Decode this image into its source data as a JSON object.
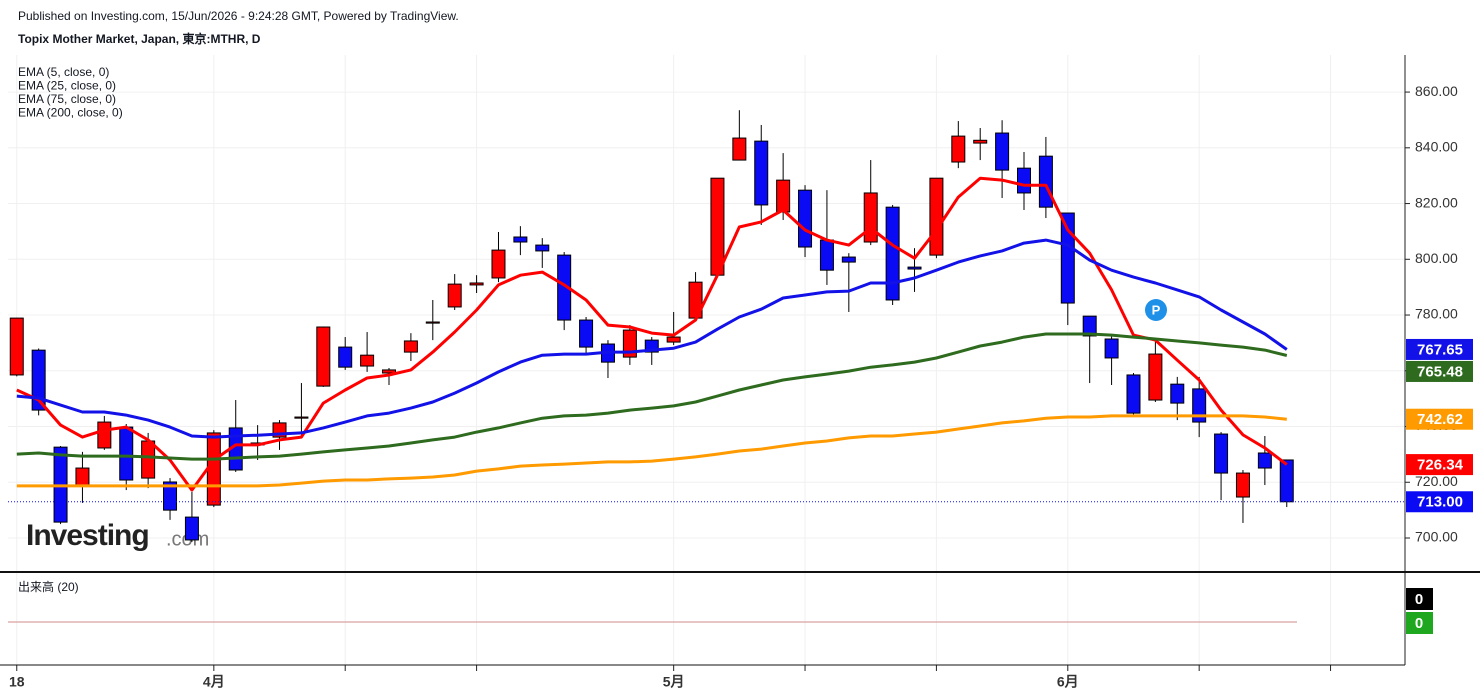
{
  "chart_data": {
    "type": "candlestick",
    "subtitle": "Published on Investing.com, 15/Jun/2026 - 9:24:28 GMT, Powered by TradingView.",
    "title": "Topix Mother Market, Japan, 東京:MTHR, D",
    "watermark": [
      "Investing",
      ".com"
    ],
    "badge": "P",
    "categories": [
      "18",
      null,
      null,
      null,
      null,
      null,
      null,
      null,
      null,
      "4月",
      null,
      null,
      null,
      null,
      null,
      null,
      null,
      null,
      null,
      null,
      null,
      null,
      null,
      null,
      null,
      null,
      null,
      null,
      null,
      null,
      "5月",
      null,
      null,
      null,
      null,
      null,
      null,
      null,
      null,
      null,
      null,
      null,
      null,
      null,
      null,
      null,
      null,
      null,
      "6月",
      null,
      null,
      null,
      null,
      null,
      null,
      null,
      null,
      null,
      null
    ],
    "xlim": [
      -0.4,
      63.4
    ],
    "xticks": [
      {
        "value": 0,
        "label": "18"
      },
      {
        "value": 9,
        "label": "4月"
      },
      {
        "value": 15,
        "label": null
      },
      {
        "value": 21,
        "label": null
      },
      {
        "value": 30,
        "label": "5月"
      },
      {
        "value": 36,
        "label": null
      },
      {
        "value": 42,
        "label": null
      },
      {
        "value": 48,
        "label": "6月"
      },
      {
        "value": 54,
        "label": null
      },
      {
        "value": 60,
        "label": null
      }
    ],
    "ylim": [
      687.8,
      873.3
    ],
    "yticks": [
      {
        "value": 700,
        "label": "700.00"
      },
      {
        "value": 720,
        "label": "720.00"
      },
      {
        "value": 740,
        "label": "740.00"
      },
      {
        "value": 760,
        "label": "760.00"
      },
      {
        "value": 780,
        "label": "780.00"
      },
      {
        "value": 800,
        "label": "800.00"
      },
      {
        "value": 820,
        "label": "820.00"
      },
      {
        "value": 840,
        "label": "840.00"
      },
      {
        "value": 860,
        "label": "860.00"
      }
    ],
    "grid": true,
    "up_color": "#ff0000",
    "down_color": "#0a0af5",
    "open": [
      758.5,
      767.4,
      732.6,
      718.6,
      732.3,
      739.8,
      721.5,
      720.1,
      707.5,
      711.8,
      739.5,
      734.1,
      736.2,
      743.0,
      754.5,
      768.5,
      761.7,
      759.2,
      766.7,
      777.1,
      782.9,
      790.8,
      793.3,
      808.0,
      805.1,
      801.5,
      778.2,
      769.6,
      764.9,
      771.0,
      770.3,
      778.9,
      794.3,
      835.6,
      842.4,
      817.0,
      824.8,
      806.9,
      800.8,
      806.2,
      818.7,
      797.2,
      801.5,
      834.9,
      841.7,
      845.3,
      832.7,
      837.0,
      816.6,
      779.6,
      771.4,
      758.5,
      749.5,
      755.2,
      753.5,
      737.3,
      714.7,
      730.5,
      728.0
    ],
    "high": [
      779.0,
      768.0,
      733.0,
      730.9,
      743.8,
      740.9,
      737.7,
      721.5,
      716.5,
      738.7,
      749.5,
      740.5,
      742.3,
      755.6,
      775.9,
      772.1,
      773.9,
      761.0,
      773.5,
      785.4,
      794.7,
      794.3,
      809.8,
      811.9,
      807.6,
      802.6,
      779.3,
      771.0,
      776.4,
      772.1,
      781.1,
      795.4,
      829.1,
      853.5,
      848.2,
      838.1,
      826.6,
      824.8,
      802.2,
      835.6,
      819.5,
      804.0,
      829.1,
      849.6,
      847.1,
      849.9,
      838.5,
      843.9,
      816.6,
      779.6,
      772.5,
      759.2,
      771.0,
      757.8,
      757.8,
      738.0,
      724.4,
      736.6,
      728.0
    ],
    "low": [
      758.0,
      744.0,
      705.0,
      712.6,
      731.6,
      717.2,
      717.9,
      706.5,
      698.6,
      711.1,
      723.7,
      728.0,
      731.6,
      737.0,
      754.2,
      760.3,
      759.6,
      754.9,
      763.5,
      771.0,
      781.8,
      787.9,
      791.8,
      801.5,
      796.9,
      774.6,
      765.6,
      757.4,
      762.1,
      762.1,
      769.2,
      778.2,
      794.3,
      835.6,
      812.3,
      814.1,
      800.8,
      790.8,
      781.1,
      805.1,
      783.6,
      788.3,
      800.4,
      832.7,
      835.6,
      822.0,
      817.7,
      814.8,
      776.4,
      755.6,
      754.9,
      744.1,
      748.8,
      742.3,
      736.2,
      713.6,
      705.4,
      719.0,
      711.1
    ],
    "close": [
      778.9,
      745.9,
      705.7,
      725.1,
      741.6,
      720.8,
      734.8,
      710.0,
      699.3,
      737.7,
      724.4,
      733.4,
      741.3,
      743.4,
      775.7,
      761.3,
      765.6,
      760.3,
      770.7,
      777.5,
      791.1,
      791.5,
      803.3,
      806.2,
      803.0,
      778.2,
      768.5,
      763.1,
      774.6,
      766.7,
      772.1,
      791.8,
      829.1,
      843.5,
      819.5,
      828.4,
      804.4,
      796.1,
      799.0,
      823.8,
      785.4,
      796.5,
      829.1,
      844.2,
      842.7,
      832.0,
      823.8,
      818.7,
      784.3,
      772.5,
      764.6,
      744.8,
      766.0,
      748.4,
      741.6,
      723.3,
      723.3,
      725.1,
      713
    ],
    "close_label": "713.00",
    "series": [
      {
        "name": "EMA (5, close, 0)",
        "color": "#ff0000",
        "last_label": "726.34",
        "values": [
          753.1,
          749.5,
          740.5,
          736.2,
          738.7,
          739.8,
          735.2,
          728.0,
          717.2,
          728.0,
          733.4,
          733.4,
          735.2,
          736.2,
          748.4,
          753.1,
          757.4,
          758.5,
          760.3,
          766.7,
          773.9,
          781.8,
          790.8,
          794.3,
          795.4,
          790.8,
          785.4,
          776.4,
          775.7,
          773.5,
          772.8,
          778.2,
          794.3,
          811.6,
          813.4,
          817.7,
          810.5,
          806.9,
          805.1,
          811.2,
          805.1,
          800.4,
          810.5,
          822.3,
          829.1,
          828.4,
          826.6,
          826.6,
          810.5,
          802.2,
          789.0,
          772.8,
          771.0,
          763.8,
          756.7,
          745.9,
          737.0,
          732.3,
          726.34
        ]
      },
      {
        "name": "EMA (25, close, 0)",
        "color": "#1212e8",
        "last_label": "767.65",
        "values": [
          750.9,
          750.2,
          747.7,
          745.2,
          745.2,
          744.1,
          742.3,
          739.8,
          736.6,
          736.2,
          736.6,
          736.9,
          737.3,
          737.7,
          739.5,
          741.6,
          743.8,
          744.8,
          746.6,
          748.8,
          752.0,
          755.6,
          759.6,
          763.1,
          765.6,
          766.0,
          766.0,
          766.7,
          766.7,
          767.4,
          768.1,
          770.3,
          774.9,
          779.3,
          782.1,
          786.1,
          787.2,
          788.3,
          788.6,
          791.5,
          791.5,
          793.3,
          796.1,
          799.0,
          801.2,
          803.0,
          805.8,
          806.9,
          805.1,
          799.7,
          796.1,
          793.6,
          791.5,
          789.0,
          786.5,
          781.8,
          777.5,
          773.2,
          767.65
        ]
      },
      {
        "name": "EMA (75, close, 0)",
        "color": "#2e6b1f",
        "last_label": "765.48",
        "values": [
          730.1,
          730.5,
          729.8,
          729.4,
          729.4,
          729.4,
          729.1,
          728.7,
          728.3,
          728.3,
          728.7,
          729.1,
          729.4,
          730.1,
          730.9,
          731.6,
          732.3,
          733.0,
          734.1,
          735.2,
          736.2,
          738.0,
          739.5,
          741.3,
          743.0,
          743.8,
          744.1,
          744.8,
          745.9,
          746.6,
          747.4,
          748.8,
          750.9,
          753.1,
          754.9,
          756.7,
          757.8,
          758.8,
          759.9,
          761.3,
          762.1,
          763.1,
          764.6,
          766.7,
          768.9,
          770.3,
          772.1,
          773.2,
          773.2,
          773.2,
          772.8,
          772.1,
          771.4,
          770.7,
          770.0,
          769.2,
          768.5,
          767.4,
          765.48
        ]
      },
      {
        "name": "EMA (200, close, 0)",
        "color": "#ff9a00",
        "last_label": "742.62",
        "values": [
          718.7,
          718.7,
          718.7,
          718.7,
          718.7,
          718.7,
          718.7,
          718.7,
          718.7,
          718.7,
          718.7,
          718.7,
          719.0,
          719.7,
          720.4,
          720.8,
          720.8,
          721.2,
          721.5,
          721.9,
          722.6,
          724.0,
          724.8,
          725.8,
          726.2,
          726.5,
          726.9,
          727.3,
          727.3,
          727.6,
          728.3,
          729.1,
          730.1,
          731.2,
          731.9,
          733.0,
          734.1,
          734.8,
          735.9,
          736.6,
          736.6,
          737.3,
          738.0,
          739.1,
          740.2,
          741.3,
          742.0,
          743.0,
          743.4,
          743.4,
          743.8,
          743.8,
          743.8,
          743.8,
          743.8,
          743.8,
          743.8,
          743.4,
          742.62
        ]
      }
    ],
    "volume_title": "出来高 (20)",
    "volume_last": [
      {
        "value": 0,
        "color": "#000000"
      },
      {
        "value": 0,
        "color": "#1fa81f"
      }
    ]
  }
}
